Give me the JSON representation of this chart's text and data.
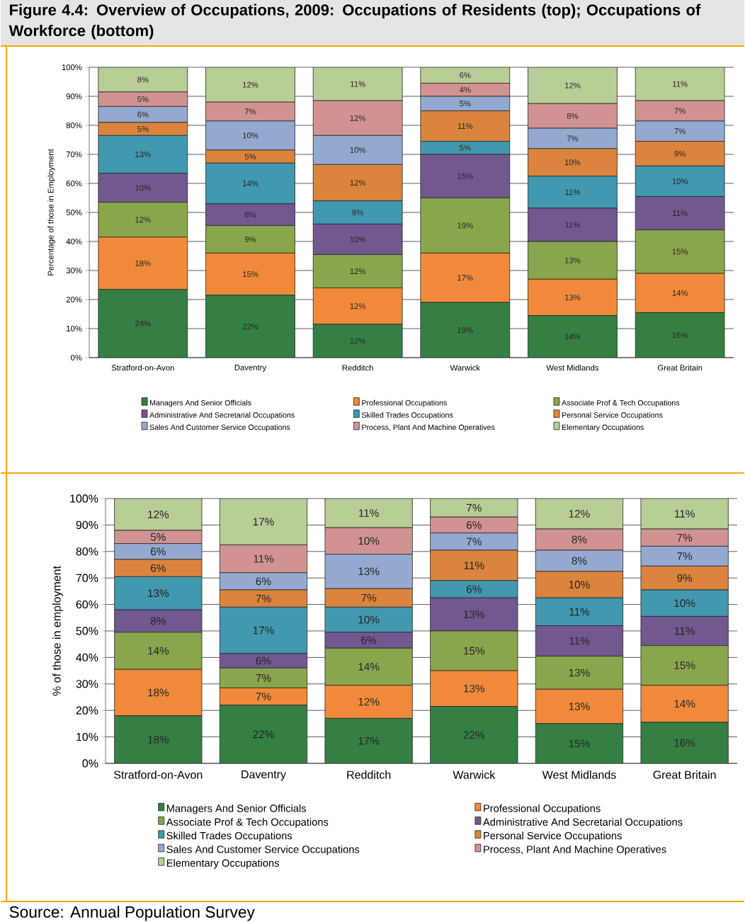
{
  "chart_data": [
    {
      "type": "bar",
      "stacked": true,
      "title": "Figure 4.4: Overview of Occupations, 2009: Occupations of Residents (top); Occupations of Workforce (bottom)",
      "ylabel": "Percentage of those in Employment",
      "grid": "y",
      "legend": "bottom",
      "categories": [
        "Stratford-on-Avon",
        "Daventry",
        "Redditch",
        "Warwick",
        "West Midlands",
        "Great Britain"
      ],
      "ylim": [
        0,
        100
      ],
      "yticks": [
        {
          "value": 0,
          "label": "0%"
        },
        {
          "value": 10,
          "label": "10%"
        },
        {
          "value": 20,
          "label": "20%"
        },
        {
          "value": 30,
          "label": "30%"
        },
        {
          "value": 40,
          "label": "40%"
        },
        {
          "value": 50,
          "label": "50%"
        },
        {
          "value": 60,
          "label": "60%"
        },
        {
          "value": 70,
          "label": "70%"
        },
        {
          "value": 80,
          "label": "80%"
        },
        {
          "value": 90,
          "label": "90%"
        },
        {
          "value": 100,
          "label": "100%"
        }
      ],
      "series": [
        {
          "name": "Managers And Senior Officials",
          "color": "#357f45",
          "values": [
            23.5,
            21.5,
            11.5,
            19,
            14.5,
            15.5
          ],
          "value_labels": [
            "24%",
            "22%",
            "12%",
            "19%",
            "14%",
            "16%"
          ]
        },
        {
          "name": "Professional Occupations",
          "color": "#f08a3a",
          "values": [
            18,
            14.5,
            12.5,
            17,
            12.5,
            13.5
          ],
          "value_labels": [
            "18%",
            "15%",
            "12%",
            "17%",
            "13%",
            "14%"
          ]
        },
        {
          "name": "Associate Prof & Tech Occupations",
          "color": "#8aa64c",
          "values": [
            12,
            9.5,
            11.5,
            19,
            13,
            15
          ],
          "value_labels": [
            "12%",
            "9%",
            "12%",
            "19%",
            "13%",
            "15%"
          ]
        },
        {
          "name": "Administrative And Secretarial Occupations",
          "color": "#71588f",
          "values": [
            10,
            7.5,
            10.5,
            15,
            11.5,
            11.5
          ],
          "value_labels": [
            "10%",
            "8%",
            "10%",
            "15%",
            "11%",
            "11%"
          ]
        },
        {
          "name": "Skilled Trades Occupations",
          "color": "#4198af",
          "values": [
            13,
            14,
            8,
            4.5,
            11,
            10.5
          ],
          "value_labels": [
            "13%",
            "14%",
            "8%",
            "5%",
            "11%",
            "10%"
          ]
        },
        {
          "name": "Personal Service Occupations",
          "color": "#db843d",
          "values": [
            4.5,
            4.5,
            12.5,
            10.5,
            9.5,
            8.5
          ],
          "value_labels": [
            "5%",
            "5%",
            "12%",
            "11%",
            "10%",
            "9%"
          ]
        },
        {
          "name": "Sales And Customer Service Occupations",
          "color": "#93a9cf",
          "values": [
            5.5,
            10,
            10,
            5,
            7,
            7
          ],
          "value_labels": [
            "6%",
            "10%",
            "10%",
            "5%",
            "7%",
            "7%"
          ]
        },
        {
          "name": "Process, Plant And Machine Operatives",
          "color": "#d19392",
          "values": [
            5,
            6.5,
            12,
            4.5,
            8.5,
            7
          ],
          "value_labels": [
            "5%",
            "7%",
            "12%",
            "4%",
            "8%",
            "7%"
          ]
        },
        {
          "name": "Elementary Occupations",
          "color": "#b9cd96",
          "values": [
            8.5,
            12,
            11.5,
            5.5,
            12.5,
            11.5
          ],
          "value_labels": [
            "8%",
            "12%",
            "11%",
            "6%",
            "12%",
            "11%"
          ]
        }
      ]
    },
    {
      "type": "bar",
      "stacked": true,
      "ylabel": "% of those in employment",
      "grid": "y",
      "legend": "bottom",
      "annotations": [
        "Source: Annual Population Survey"
      ],
      "categories": [
        "Stratford-on-Avon",
        "Daventry",
        "Redditch",
        "Warwick",
        "West Midlands",
        "Great Britain"
      ],
      "ylim": [
        0,
        100
      ],
      "yticks": [
        {
          "value": 0,
          "label": "0%"
        },
        {
          "value": 10,
          "label": "10%"
        },
        {
          "value": 20,
          "label": "20%"
        },
        {
          "value": 30,
          "label": "30%"
        },
        {
          "value": 40,
          "label": "40%"
        },
        {
          "value": 50,
          "label": "50%"
        },
        {
          "value": 60,
          "label": "60%"
        },
        {
          "value": 70,
          "label": "70%"
        },
        {
          "value": 80,
          "label": "80%"
        },
        {
          "value": 90,
          "label": "90%"
        },
        {
          "value": 100,
          "label": "100%"
        }
      ],
      "series": [
        {
          "name": "Managers And Senior Officials",
          "color": "#357f45",
          "values": [
            18,
            22,
            17,
            21.5,
            15,
            15.5
          ],
          "value_labels": [
            "18%",
            "22%",
            "17%",
            "22%",
            "15%",
            "16%"
          ]
        },
        {
          "name": "Professional Occupations",
          "color": "#f08a3a",
          "values": [
            17.5,
            6.5,
            12.5,
            13.5,
            13,
            14
          ],
          "value_labels": [
            "18%",
            "7%",
            "12%",
            "13%",
            "13%",
            "14%"
          ]
        },
        {
          "name": "Associate Prof & Tech Occupations",
          "color": "#8aa64c",
          "values": [
            14,
            7.5,
            14,
            15,
            12.5,
            15
          ],
          "value_labels": [
            "14%",
            "7%",
            "14%",
            "15%",
            "13%",
            "15%"
          ]
        },
        {
          "name": "Administrative And Secretarial Occupations",
          "color": "#71588f",
          "values": [
            8.5,
            5.5,
            6,
            12.5,
            11.5,
            11
          ],
          "value_labels": [
            "8%",
            "6%",
            "6%",
            "13%",
            "11%",
            "11%"
          ]
        },
        {
          "name": "Skilled Trades Occupations",
          "color": "#4198af",
          "values": [
            12.5,
            17.5,
            9.5,
            6.5,
            10.5,
            10
          ],
          "value_labels": [
            "13%",
            "17%",
            "10%",
            "6%",
            "11%",
            "10%"
          ]
        },
        {
          "name": "Personal Service Occupations",
          "color": "#db843d",
          "values": [
            6.5,
            6.5,
            7,
            11.5,
            10,
            9
          ],
          "value_labels": [
            "6%",
            "7%",
            "7%",
            "11%",
            "10%",
            "9%"
          ]
        },
        {
          "name": "Sales And Customer Service Occupations",
          "color": "#93a9cf",
          "values": [
            6,
            6.5,
            13,
            6.5,
            8,
            7.5
          ],
          "value_labels": [
            "6%",
            "6%",
            "13%",
            "7%",
            "8%",
            "7%"
          ]
        },
        {
          "name": "Process, Plant And Machine Operatives",
          "color": "#d19392",
          "values": [
            5,
            10.5,
            10,
            6,
            8,
            6.5
          ],
          "value_labels": [
            "5%",
            "11%",
            "10%",
            "6%",
            "8%",
            "7%"
          ]
        },
        {
          "name": "Elementary Occupations",
          "color": "#b9cd96",
          "values": [
            12,
            17.5,
            11,
            7,
            11.5,
            11.5
          ],
          "value_labels": [
            "12%",
            "17%",
            "11%",
            "7%",
            "12%",
            "11%"
          ]
        }
      ]
    }
  ]
}
